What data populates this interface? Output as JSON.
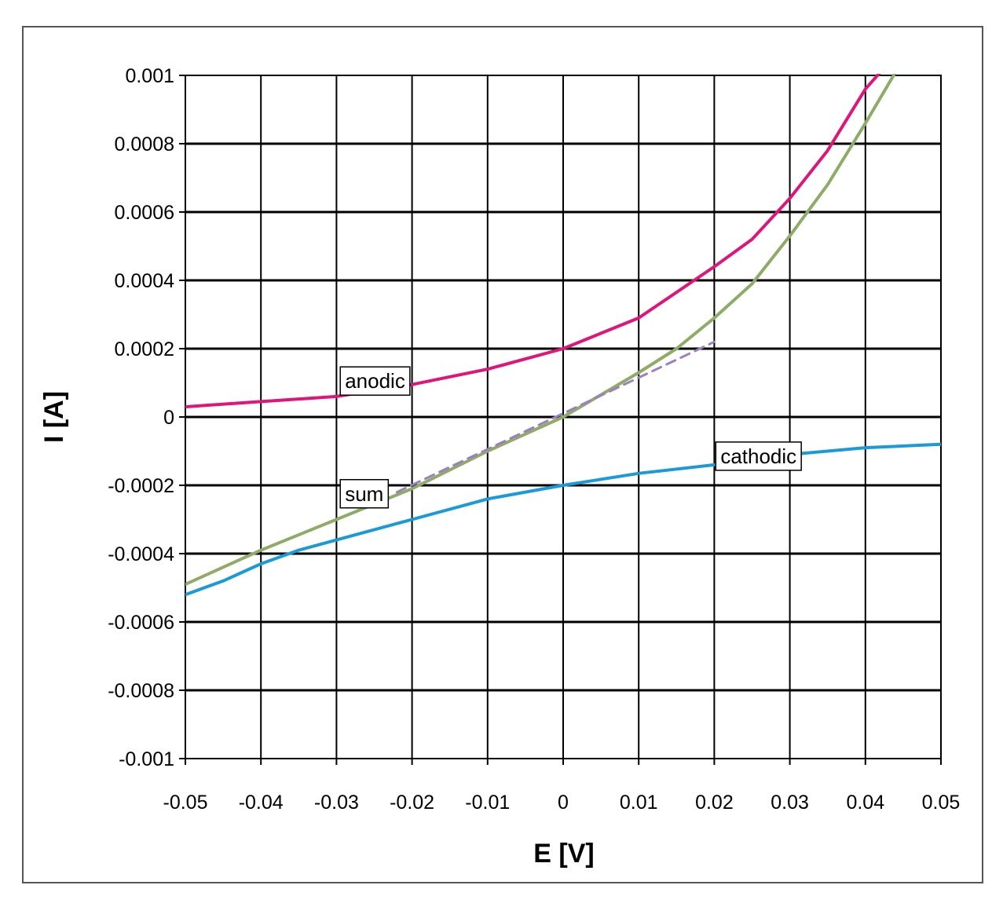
{
  "chart_data": {
    "type": "line",
    "title": "",
    "xlabel": "E [V]",
    "ylabel": "I [A]",
    "xlim": [
      -0.05,
      0.05
    ],
    "ylim": [
      -0.001,
      0.001
    ],
    "x_ticks": [
      "-0.05",
      "-0.04",
      "-0.03",
      "-0.02",
      "-0.01",
      "0",
      "0.01",
      "0.02",
      "0.03",
      "0.04",
      "0.05"
    ],
    "y_ticks": [
      "0.001",
      "0.0008",
      "0.0006",
      "0.0004",
      "0.0002",
      "0",
      "-0.0002",
      "-0.0004",
      "-0.0006",
      "-0.0008",
      "-0.001"
    ],
    "grid": true,
    "legend": "none",
    "series": [
      {
        "name": "anodic",
        "color": "#e0157a",
        "dashed": false,
        "x": [
          -0.05,
          -0.04,
          -0.03,
          -0.02,
          -0.01,
          0,
          0.01,
          0.02,
          0.025,
          0.03,
          0.035,
          0.04,
          0.042
        ],
        "y": [
          3e-05,
          4.5e-05,
          6e-05,
          9.5e-05,
          0.00014,
          0.0002,
          0.00029,
          0.00044,
          0.00052,
          0.00064,
          0.00078,
          0.00096,
          0.00101
        ]
      },
      {
        "name": "cathodic",
        "color": "#1a9ad8",
        "dashed": false,
        "x": [
          -0.05,
          -0.045,
          -0.04,
          -0.035,
          -0.03,
          -0.02,
          -0.01,
          0,
          0.01,
          0.02,
          0.03,
          0.04,
          0.05
        ],
        "y": [
          -0.00052,
          -0.00048,
          -0.00043,
          -0.00039,
          -0.00036,
          -0.0003,
          -0.00024,
          -0.0002,
          -0.000165,
          -0.00014,
          -0.00011,
          -9e-05,
          -8e-05
        ]
      },
      {
        "name": "sum",
        "color": "#8fab68",
        "dashed": false,
        "x": [
          -0.05,
          -0.04,
          -0.03,
          -0.02,
          -0.01,
          0,
          0.01,
          0.015,
          0.02,
          0.025,
          0.03,
          0.035,
          0.04,
          0.044
        ],
        "y": [
          -0.00049,
          -0.00039,
          -0.0003,
          -0.00021,
          -0.0001,
          0,
          0.00013,
          0.0002,
          0.00029,
          0.00039,
          0.00053,
          0.00068,
          0.00086,
          0.00101
        ]
      },
      {
        "name": "",
        "color": "#9b7fc0",
        "dashed": true,
        "x": [
          -0.022,
          0.02
        ],
        "y": [
          -0.00022,
          0.00022
        ]
      }
    ],
    "annotations": [
      {
        "text": "anodic",
        "x": -0.0295,
        "y": 8e-05
      },
      {
        "text": "cathodic",
        "x": 0.0202,
        "y": -0.00014
      },
      {
        "text": "sum",
        "x": -0.0295,
        "y": -0.00025
      }
    ]
  }
}
